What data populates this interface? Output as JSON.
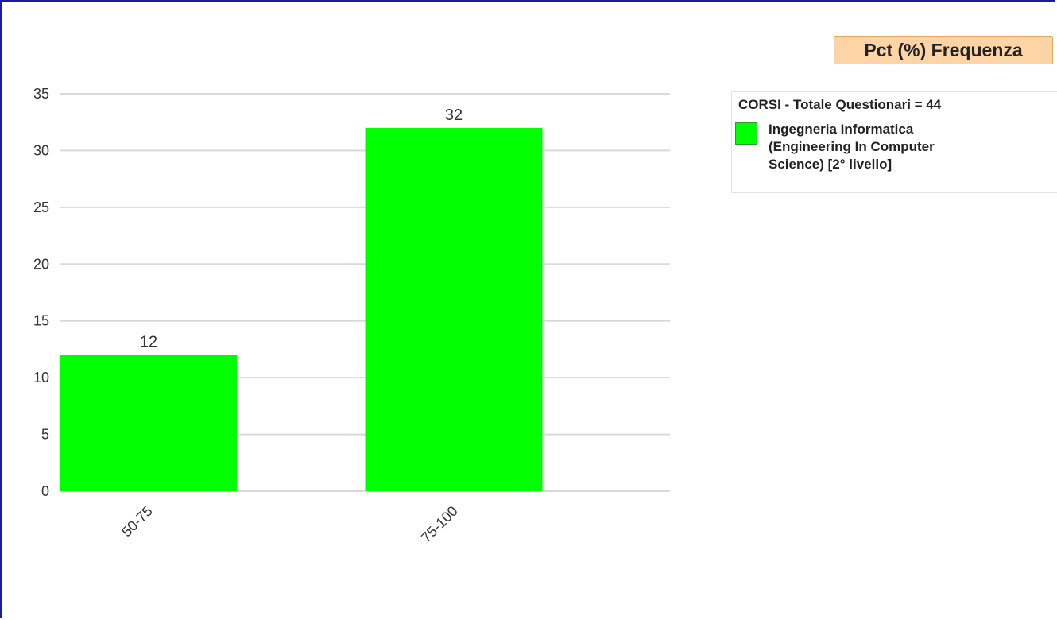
{
  "title_badge": "Pct (%) Frequenza",
  "legend": {
    "title": "CORSI - Totale Questionari = 44",
    "series_lines": [
      "Ingegneria Informatica",
      "(Engineering In Computer",
      "Science) [2° livello]"
    ]
  },
  "colors": {
    "bar": "#00ff00",
    "grid": "#d9d9d9",
    "badge_bg": "#fcd4a6",
    "frame": "#1a1aa6"
  },
  "chart_data": {
    "type": "bar",
    "categories": [
      "50-75",
      "75-100"
    ],
    "series": [
      {
        "name": "Ingegneria Informatica (Engineering In Computer Science) [2° livello]",
        "values": [
          12,
          32
        ]
      }
    ],
    "data_labels": [
      "12",
      "32"
    ],
    "ylim": [
      0,
      35
    ],
    "yticks": [
      0,
      5,
      10,
      15,
      20,
      25,
      30,
      35
    ],
    "grid": true,
    "legend_position": "right",
    "xlabel": "",
    "ylabel": ""
  }
}
